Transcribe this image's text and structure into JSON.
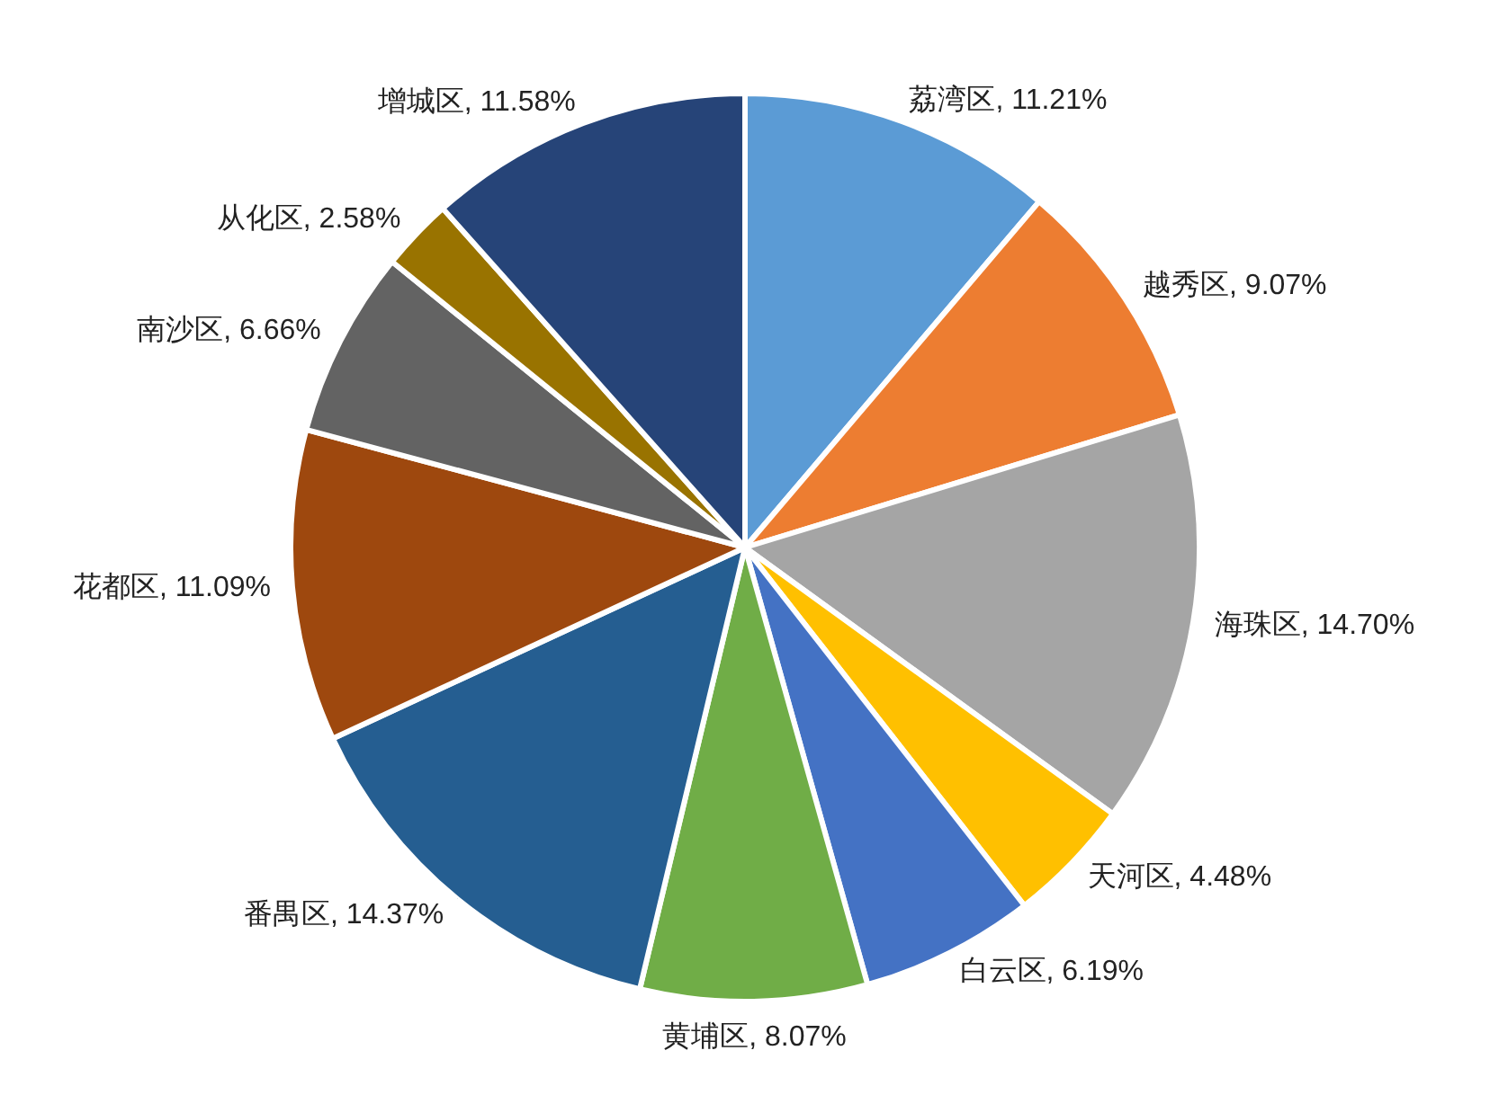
{
  "chart_data": {
    "type": "pie",
    "categories": [
      "荔湾区",
      "越秀区",
      "海珠区",
      "天河区",
      "白云区",
      "黄埔区",
      "番禺区",
      "花都区",
      "南沙区",
      "从化区",
      "增城区"
    ],
    "values": [
      11.21,
      9.07,
      14.7,
      4.48,
      6.19,
      8.07,
      14.37,
      11.09,
      6.66,
      2.58,
      11.58
    ],
    "value_labels": [
      "11.21%",
      "9.07%",
      "14.70%",
      "4.48%",
      "6.19%",
      "8.07%",
      "14.37%",
      "11.09%",
      "6.66%",
      "2.58%",
      "11.58%"
    ],
    "colors": [
      "#5b9bd5",
      "#ed7d31",
      "#a5a5a5",
      "#ffc000",
      "#4472c4",
      "#70ad47",
      "#255e91",
      "#9e480e",
      "#636363",
      "#997300",
      "#264478"
    ],
    "legend": false
  }
}
